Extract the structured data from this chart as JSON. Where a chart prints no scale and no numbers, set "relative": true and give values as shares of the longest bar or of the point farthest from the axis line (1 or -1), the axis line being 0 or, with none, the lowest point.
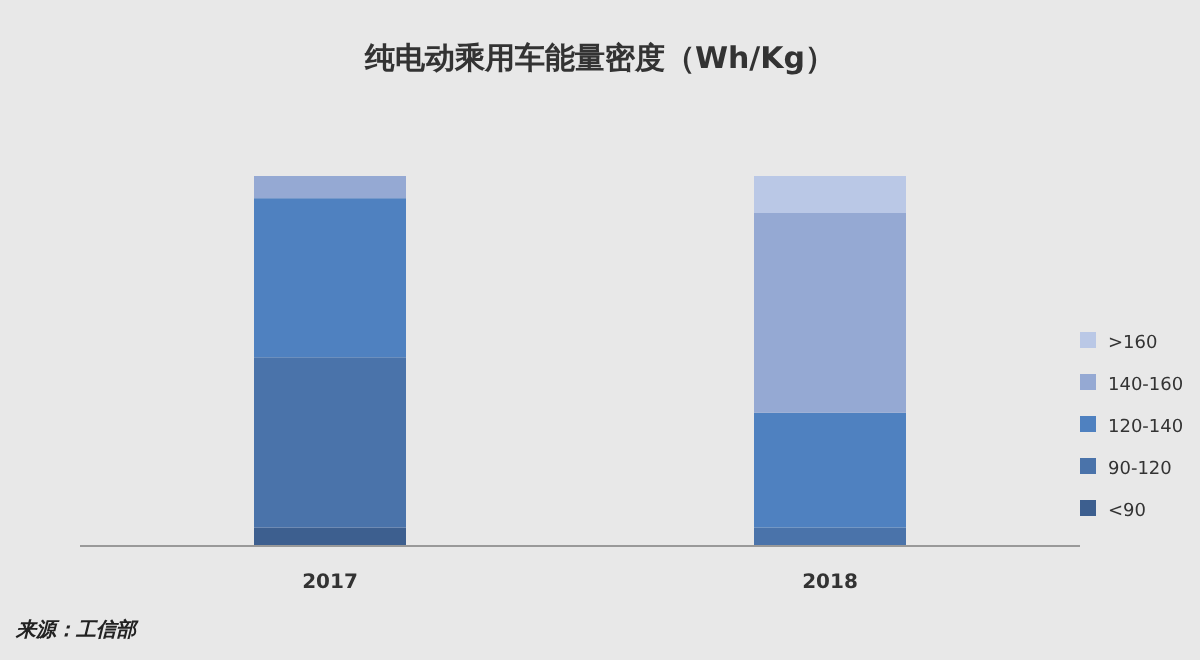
{
  "chart_data": {
    "type": "bar",
    "title": "纯电动乘用车能量密度（Wh/Kg）",
    "categories": [
      "2017",
      "2018"
    ],
    "stacked": true,
    "relative": true,
    "legend": "right",
    "annotations": [
      "来源：工信部"
    ],
    "series": [
      {
        "name": "<90",
        "color": "#3d5f8f",
        "values": [
          0.05,
          0
        ]
      },
      {
        "name": "90-120",
        "color": "#4a73aa",
        "values": [
          0.46,
          0.05
        ]
      },
      {
        "name": "120-140",
        "color": "#4f81c0",
        "values": [
          0.43,
          0.31
        ]
      },
      {
        "name": "140-160",
        "color": "#95a9d3",
        "values": [
          0.06,
          0.54
        ]
      },
      {
        "name": ">160",
        "color": "#bac8e6",
        "values": [
          0,
          0.1
        ]
      }
    ]
  }
}
